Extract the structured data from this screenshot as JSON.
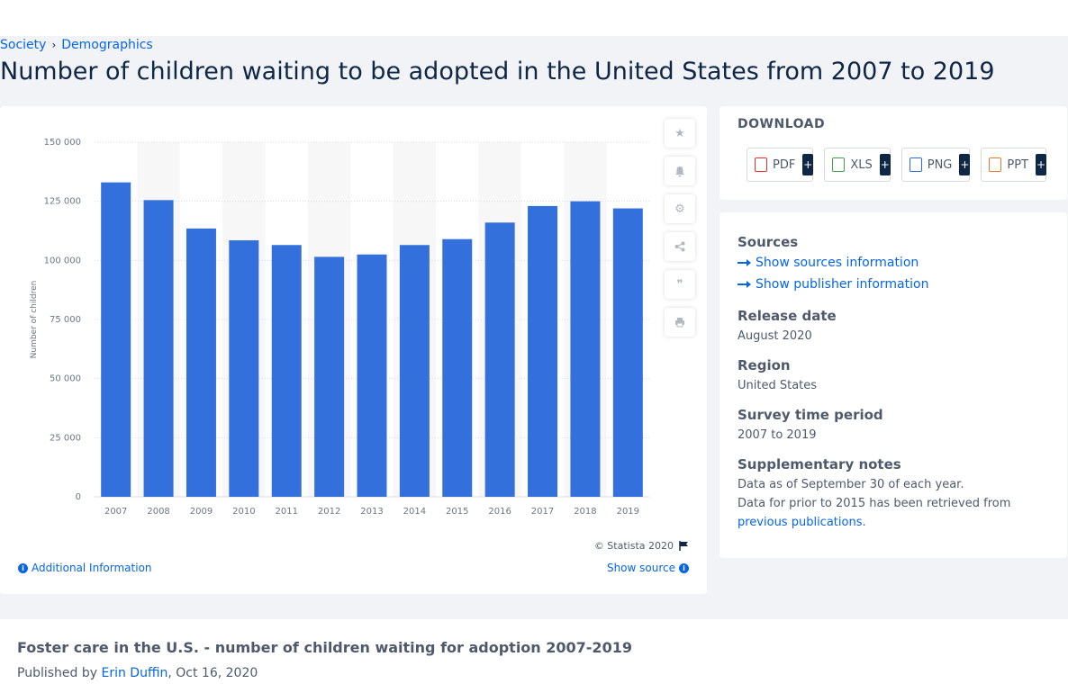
{
  "breadcrumb": {
    "item1": "Society",
    "item2": "Demographics"
  },
  "page_title": "Number of children waiting to be adopted in the United States from 2007 to 2019",
  "chart_card": {
    "copyright": "© Statista 2020",
    "additional_info": "Additional Information",
    "show_source": "Show source"
  },
  "chart_data": {
    "type": "bar",
    "categories": [
      "2007",
      "2008",
      "2009",
      "2010",
      "2011",
      "2012",
      "2013",
      "2014",
      "2015",
      "2016",
      "2017",
      "2018",
      "2019"
    ],
    "values": [
      133000,
      125500,
      113500,
      108500,
      106500,
      101500,
      102500,
      106500,
      109000,
      116000,
      123000,
      125000,
      122000
    ],
    "ylabel": "Number of children",
    "ylim": [
      0,
      150000
    ],
    "yticks": [
      0,
      25000,
      50000,
      75000,
      100000,
      125000,
      150000
    ],
    "ytick_labels": [
      "0",
      "25 000",
      "50 000",
      "75 000",
      "100 000",
      "125 000",
      "150 000"
    ],
    "bar_color": "#3470dc",
    "grid": true
  },
  "download": {
    "title": "DOWNLOAD",
    "buttons": [
      {
        "label": "PDF",
        "color": "#e2302b"
      },
      {
        "label": "XLS",
        "color": "#3aa04a"
      },
      {
        "label": "PNG",
        "color": "#2d6bd8"
      },
      {
        "label": "PPT",
        "color": "#e8792b"
      }
    ],
    "plus": "+"
  },
  "info": {
    "sources_head": "Sources",
    "sources_link": "Show sources information",
    "publisher_link": "Show publisher information",
    "release_head": "Release date",
    "release_val": "August 2020",
    "region_head": "Region",
    "region_val": "United States",
    "survey_head": "Survey time period",
    "survey_val": "2007 to 2019",
    "notes_head": "Supplementary notes",
    "notes_line1": "Data as of September 30 of each year.",
    "notes_line2": "Data for prior to 2015 has been retrieved from",
    "notes_link": "previous publications",
    "notes_end": "."
  },
  "bottom": {
    "title": "Foster care in the U.S. - number of children waiting for adoption 2007-2019",
    "published_by": "Published by ",
    "author": "Erin Duffin",
    "date": ", Oct 16, 2020"
  }
}
